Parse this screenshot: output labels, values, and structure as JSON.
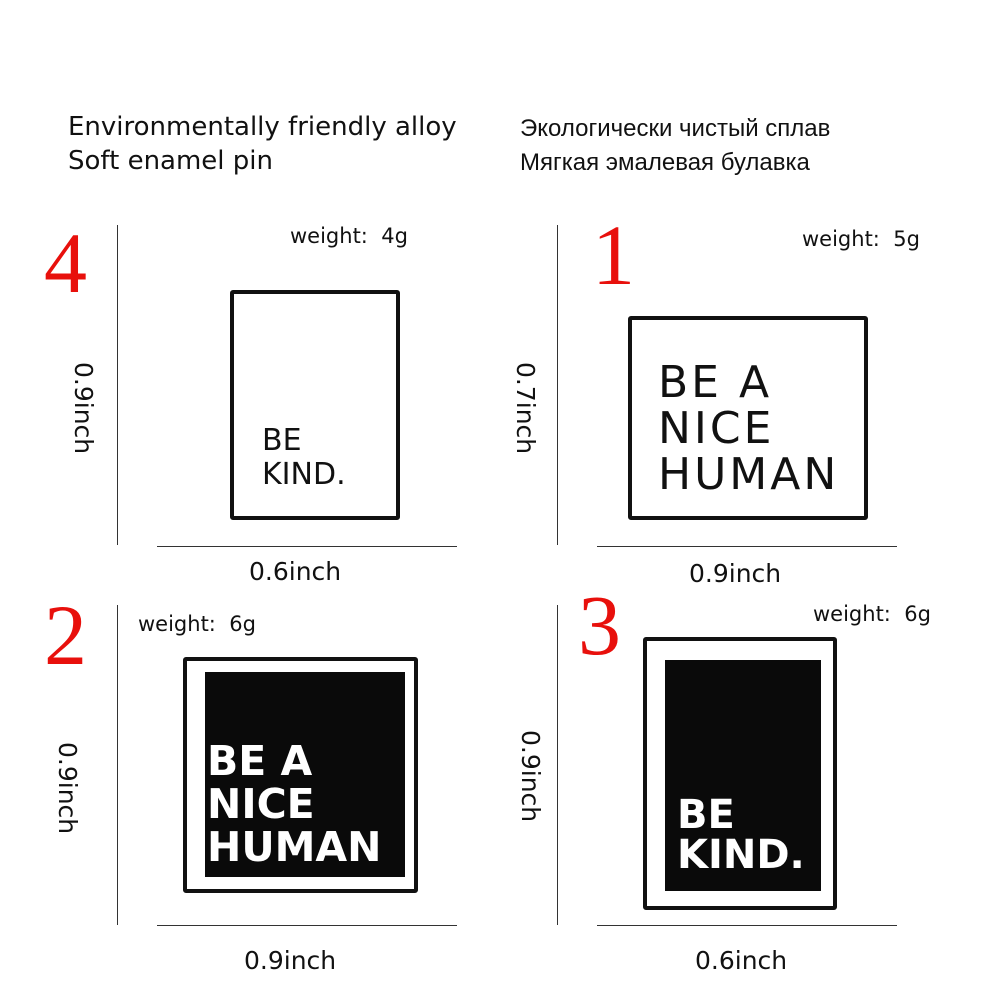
{
  "header": {
    "en_line1": "Environmentally friendly alloy",
    "en_line2": "Soft enamel pin",
    "ru_line1": "Экологически чистый сплав",
    "ru_line2": "Мягкая эмалевая булавка"
  },
  "colors": {
    "number": "#e8100c",
    "pin": "#0a0a0a"
  },
  "pins": [
    {
      "number": "4",
      "weight": "weight:  4g",
      "height": "0.9inch",
      "width": "0.6inch",
      "lines": [
        "BE",
        "KIND."
      ],
      "style": "white"
    },
    {
      "number": "1",
      "weight": "weight:  5g",
      "height": "0.7inch",
      "width": "0.9inch",
      "lines": [
        "BE A",
        "NICE",
        "HUMAN"
      ],
      "style": "white"
    },
    {
      "number": "2",
      "weight": "weight:  6g",
      "height": "0.9inch",
      "width": "0.9inch",
      "lines": [
        "BE A",
        "NICE",
        "HUMAN"
      ],
      "style": "black"
    },
    {
      "number": "3",
      "weight": "weight:  6g",
      "height": "0.9inch",
      "width": "0.6inch",
      "lines": [
        "BE",
        "KIND."
      ],
      "style": "black"
    }
  ]
}
